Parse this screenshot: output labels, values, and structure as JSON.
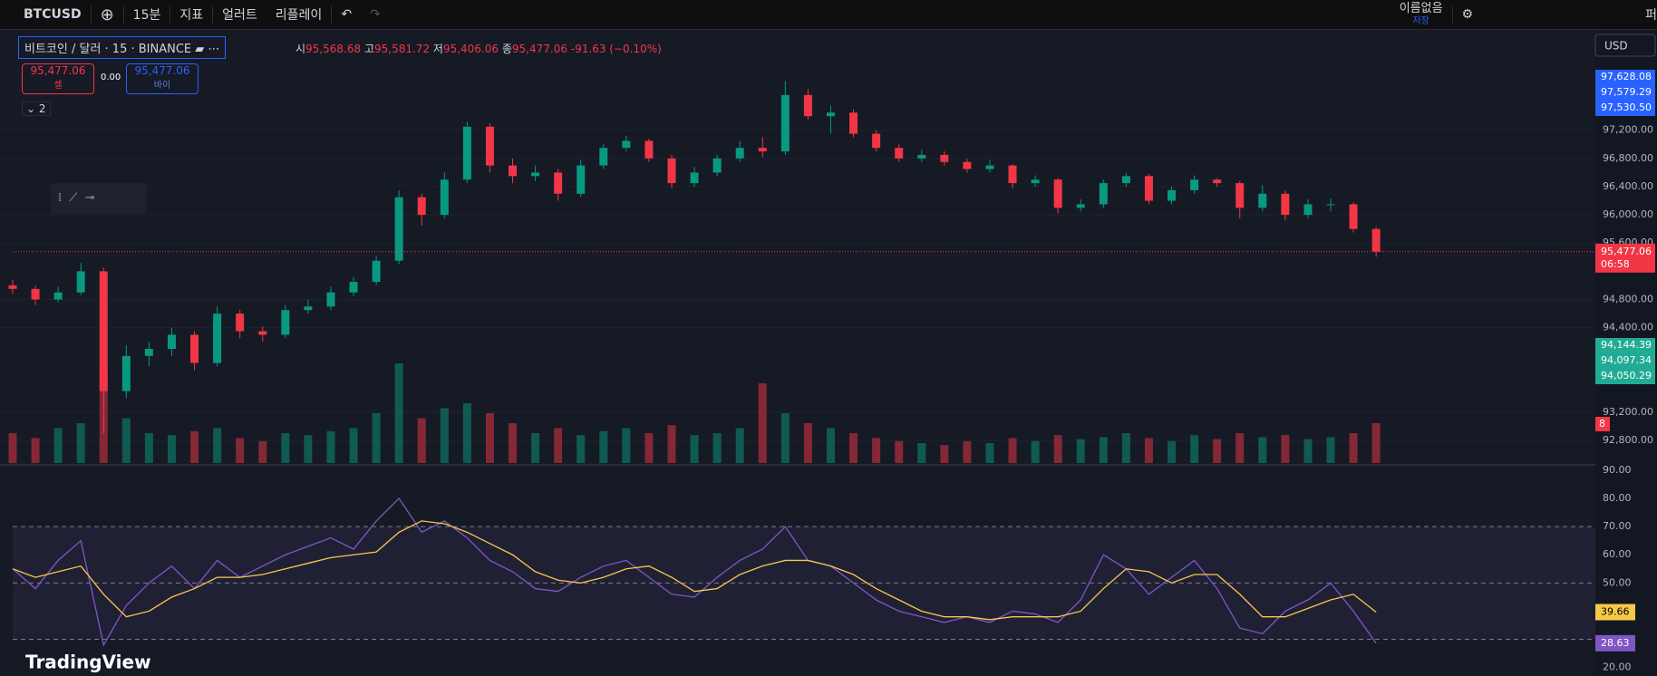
{
  "toolbar": {
    "symbol": "BTCUSD",
    "interval": "15분",
    "indicators": "지표",
    "alert": "얼러트",
    "replay": "리플레이",
    "layout_name": "이름없음",
    "save": "저장",
    "partial": "퍼"
  },
  "legend": {
    "title": "비트코인 / 달러 · 15 · BINANCE",
    "open_label": "시",
    "open": "95,568.68",
    "high_label": "고",
    "high": "95,581.72",
    "low_label": "저",
    "low": "95,406.06",
    "close_label": "종",
    "close": "95,477.06",
    "change": "-91.63 (−0.10%)",
    "collapse": "2"
  },
  "trade": {
    "sell_price": "95,477.06",
    "sell": "셀",
    "spread": "0.00",
    "buy_price": "95,477.06",
    "buy": "바이"
  },
  "currency": "USD",
  "brand": "TradingView",
  "chart_data": [
    {
      "type": "candlestick",
      "ylim": [
        92455,
        98520
      ],
      "up_color": "#089981",
      "down_color": "#f23645",
      "yticks": [
        {
          "value": 97200,
          "label": "97,200.00"
        },
        {
          "value": 96800,
          "label": "96,800.00"
        },
        {
          "value": 96400,
          "label": "96,400.00"
        },
        {
          "value": 96000,
          "label": "96,000.00"
        },
        {
          "value": 95600,
          "label": "95,600.00"
        },
        {
          "value": 94800,
          "label": "94,800.00"
        },
        {
          "value": 94400,
          "label": "94,400.00"
        },
        {
          "value": 93200,
          "label": "93,200.00"
        },
        {
          "value": 92800,
          "label": "92,800.00"
        }
      ],
      "last_price": {
        "value": 95477.06,
        "label": "95,477.06"
      },
      "countdown": "06:58",
      "badges_blue": [
        "97,628.08",
        "97,579.29",
        "97,530.50"
      ],
      "badges_green": [
        "94,144.39",
        "94,097.34",
        "94,050.29"
      ],
      "candles": [
        [
          95000,
          95080,
          94880,
          94950
        ],
        [
          94950,
          95000,
          94720,
          94800
        ],
        [
          94800,
          94980,
          94760,
          94900
        ],
        [
          94900,
          95320,
          94860,
          95200
        ],
        [
          95200,
          95250,
          92900,
          93500
        ],
        [
          93500,
          94150,
          93400,
          94000
        ],
        [
          94000,
          94200,
          93850,
          94100
        ],
        [
          94100,
          94400,
          94000,
          94300
        ],
        [
          94300,
          94350,
          93800,
          93900
        ],
        [
          93900,
          94700,
          93850,
          94600
        ],
        [
          94600,
          94650,
          94250,
          94350
        ],
        [
          94350,
          94420,
          94200,
          94300
        ],
        [
          94300,
          94720,
          94250,
          94650
        ],
        [
          94650,
          94800,
          94600,
          94700
        ],
        [
          94700,
          94980,
          94650,
          94900
        ],
        [
          94900,
          95120,
          94850,
          95050
        ],
        [
          95050,
          95420,
          95000,
          95350
        ],
        [
          95350,
          96350,
          95300,
          96250
        ],
        [
          96250,
          96300,
          95850,
          96000
        ],
        [
          96000,
          96600,
          95950,
          96500
        ],
        [
          96500,
          97320,
          96450,
          97250
        ],
        [
          97250,
          97300,
          96600,
          96700
        ],
        [
          96700,
          96800,
          96450,
          96550
        ],
        [
          96550,
          96700,
          96480,
          96600
        ],
        [
          96600,
          96650,
          96200,
          96300
        ],
        [
          96300,
          96780,
          96250,
          96700
        ],
        [
          96700,
          97000,
          96650,
          96950
        ],
        [
          96950,
          97120,
          96900,
          97050
        ],
        [
          97050,
          97080,
          96750,
          96800
        ],
        [
          96800,
          96850,
          96380,
          96450
        ],
        [
          96450,
          96680,
          96400,
          96600
        ],
        [
          96600,
          96850,
          96550,
          96800
        ],
        [
          96800,
          97050,
          96750,
          96950
        ],
        [
          96950,
          97100,
          96820,
          96900
        ],
        [
          96900,
          97900,
          96850,
          97700
        ],
        [
          97700,
          97780,
          97350,
          97400
        ],
        [
          97400,
          97550,
          97150,
          97450
        ],
        [
          97450,
          97500,
          97100,
          97150
        ],
        [
          97150,
          97200,
          96900,
          96950
        ],
        [
          96950,
          97000,
          96750,
          96800
        ],
        [
          96800,
          96920,
          96750,
          96850
        ],
        [
          96850,
          96900,
          96700,
          96750
        ],
        [
          96750,
          96800,
          96600,
          96650
        ],
        [
          96650,
          96780,
          96600,
          96700
        ],
        [
          96700,
          96720,
          96380,
          96450
        ],
        [
          96450,
          96560,
          96400,
          96500
        ],
        [
          96500,
          96520,
          96020,
          96100
        ],
        [
          96100,
          96220,
          96050,
          96150
        ],
        [
          96150,
          96500,
          96100,
          96450
        ],
        [
          96450,
          96600,
          96400,
          96550
        ],
        [
          96550,
          96580,
          96150,
          96200
        ],
        [
          96200,
          96400,
          96150,
          96350
        ],
        [
          96350,
          96560,
          96300,
          96500
        ],
        [
          96500,
          96520,
          96400,
          96450
        ],
        [
          96450,
          96480,
          95950,
          96100
        ],
        [
          96100,
          96420,
          96050,
          96300
        ],
        [
          96300,
          96350,
          95920,
          96000
        ],
        [
          96000,
          96220,
          95950,
          96150
        ],
        [
          96150,
          96230,
          96050,
          96150
        ],
        [
          96150,
          96180,
          95750,
          95800
        ],
        [
          95800,
          95830,
          95406.06,
          95477.06
        ]
      ]
    },
    {
      "type": "bar",
      "badge": "8",
      "values": [
        30,
        25,
        35,
        40,
        90,
        45,
        30,
        28,
        32,
        35,
        25,
        22,
        30,
        28,
        32,
        35,
        50,
        100,
        45,
        55,
        60,
        50,
        40,
        30,
        35,
        28,
        32,
        35,
        30,
        38,
        28,
        30,
        35,
        80,
        50,
        40,
        35,
        30,
        25,
        22,
        20,
        18,
        22,
        20,
        25,
        22,
        28,
        24,
        26,
        30,
        25,
        22,
        28,
        24,
        30,
        26,
        28,
        24,
        26,
        30,
        40
      ]
    },
    {
      "type": "line",
      "ylim": [
        17,
        91.9
      ],
      "bands": [
        30,
        50,
        70
      ],
      "yticks": [
        {
          "value": 90,
          "label": "90.00"
        },
        {
          "value": 80,
          "label": "80.00"
        },
        {
          "value": 70,
          "label": "70.00"
        },
        {
          "value": 60,
          "label": "60.00"
        },
        {
          "value": 50,
          "label": "50.00"
        },
        {
          "value": 20,
          "label": "20.00"
        }
      ],
      "series": [
        {
          "color": "#7e57c2",
          "values": [
            55,
            48,
            58,
            65,
            28,
            42,
            50,
            56,
            48,
            58,
            52,
            56,
            60,
            63,
            66,
            62,
            72,
            80,
            68,
            72,
            66,
            58,
            54,
            48,
            47,
            52,
            56,
            58,
            52,
            46,
            45,
            52,
            58,
            62,
            70,
            58,
            56,
            50,
            44,
            40,
            38,
            36,
            38,
            36,
            40,
            39,
            36,
            44,
            60,
            55,
            46,
            52,
            58,
            48,
            34,
            32,
            40,
            44,
            50,
            40,
            28.63
          ]
        },
        {
          "color": "#f7c948",
          "values": [
            55,
            52,
            54,
            56,
            46,
            38,
            40,
            45,
            48,
            52,
            52,
            53,
            55,
            57,
            59,
            60,
            61,
            68,
            72,
            71,
            68,
            64,
            60,
            54,
            51,
            50,
            52,
            55,
            56,
            52,
            47,
            48,
            53,
            56,
            58,
            58,
            56,
            53,
            48,
            44,
            40,
            38,
            38,
            37,
            38,
            38,
            38,
            40,
            48,
            55,
            54,
            50,
            53,
            53,
            46,
            38,
            38,
            41,
            44,
            46,
            39.66
          ]
        }
      ]
    }
  ]
}
